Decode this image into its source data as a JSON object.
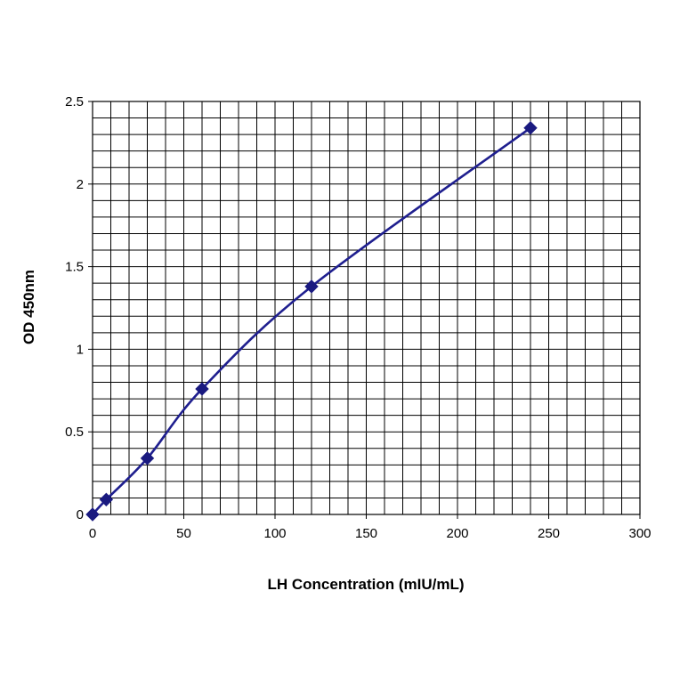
{
  "chart_data": {
    "type": "line",
    "title": "",
    "xlabel": "LH Concentration (mIU/mL)",
    "ylabel": "OD 450nm",
    "xlim": [
      0,
      300
    ],
    "ylim": [
      0,
      2.5
    ],
    "xticks": [
      0,
      50,
      100,
      150,
      200,
      250,
      300
    ],
    "yticks": [
      0,
      0.5,
      1,
      1.5,
      2,
      2.5
    ],
    "xtick_labels": [
      "0",
      "50",
      "100",
      "150",
      "200",
      "250",
      "300"
    ],
    "ytick_labels": [
      "0",
      "0.5",
      "1",
      "1.5",
      "2",
      "2.5"
    ],
    "grid": true,
    "legend": "none",
    "series": [
      {
        "x": [
          0,
          7.5,
          30,
          60,
          120,
          240
        ],
        "y": [
          0.0,
          0.09,
          0.34,
          0.76,
          1.38,
          2.34
        ],
        "color": "#1f1f8f",
        "marker": "diamond",
        "marker_color": "#1a1a80",
        "smooth": true
      }
    ]
  }
}
